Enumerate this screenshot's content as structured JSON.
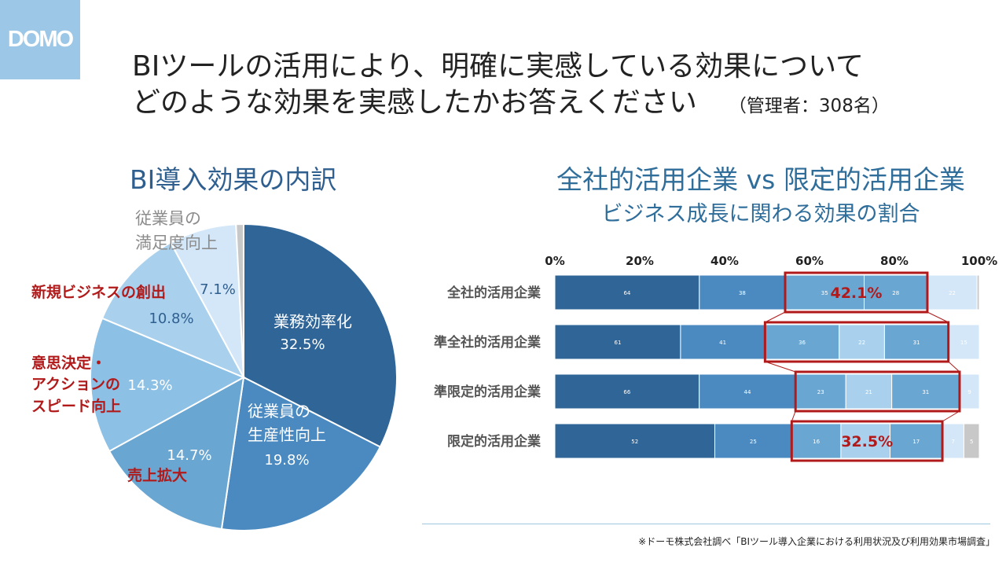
{
  "logo": {
    "text": "DOMO"
  },
  "title": {
    "line1": "BIツールの活用により、明確に実感している効果について",
    "line2": "どのような効果を実感したかお答えください",
    "sub": "（管理者：308名）"
  },
  "colors": {
    "accent": "#2f5f8f",
    "highlight": "#b01a1a",
    "pie": [
      "#2f6597",
      "#4a8ac0",
      "#6aa6d2",
      "#8dc0e5",
      "#a9d1ee",
      "#d3e7f8",
      "#c8c8c8"
    ],
    "bars": [
      "#2f6597",
      "#4a8ac0",
      "#6aa6d2",
      "#a9d1ee",
      "#6aa6d2",
      "#d3e7f8",
      "#c8c8c8"
    ]
  },
  "chart_data": [
    {
      "type": "pie",
      "title": "BI導入効果の内訳",
      "slices": [
        {
          "label": "業務効率化",
          "value": 32.5,
          "label_text": "32.5%"
        },
        {
          "label": "従業員の生産性向上",
          "value": 19.8,
          "label_text": "19.8%"
        },
        {
          "label": "売上拡大",
          "value": 14.7,
          "label_text": "14.7%"
        },
        {
          "label": "意思決定・アクションのスピード向上",
          "value": 14.3,
          "label_text": "14.3%"
        },
        {
          "label": "新規ビジネスの創出",
          "value": 10.8,
          "label_text": "10.8%"
        },
        {
          "label": "従業員の満足度向上",
          "value": 7.1,
          "label_text": "7.1%"
        },
        {
          "label": "",
          "value": 0.8,
          "label_text": ""
        }
      ],
      "labels": {
        "inside_work": [
          "業務効率化",
          "32.5%"
        ],
        "inside_prod": [
          "従業員の",
          "生産性向上",
          "19.8%"
        ],
        "outside_sales": "売上拡大",
        "outside_decision": [
          "意思決定・",
          "アクションの",
          "スピード向上"
        ],
        "outside_newbiz": "新規ビジネスの創出",
        "outside_satisfaction": [
          "従業員の",
          "満足度向上"
        ]
      }
    },
    {
      "type": "bar",
      "stacked": true,
      "orientation": "horizontal",
      "title": "全社的活用企業 vs 限定的活用企業",
      "subtitle": "ビジネス成長に関わる効果の割合",
      "xlim": [
        0,
        100
      ],
      "x_ticks": [
        "0%",
        "20%",
        "40%",
        "60%",
        "80%",
        "100%"
      ],
      "categories": [
        "全社的活用企業",
        "準全社的活用企業",
        "準限定的活用企業",
        "限定的活用企業"
      ],
      "rows": [
        {
          "name": "全社的活用企業",
          "values": [
            64,
            38,
            35,
            28,
            22,
            1
          ],
          "labels": [
            "64",
            "38",
            "35",
            "28",
            "22",
            ""
          ],
          "order": [
            0,
            1,
            2,
            4,
            5,
            6
          ],
          "highlight": [
            2,
            3
          ],
          "highlight_label": "42.1%"
        },
        {
          "name": "準全社的活用企業",
          "values": [
            61,
            41,
            36,
            22,
            31,
            15
          ],
          "labels": [
            "61",
            "41",
            "36",
            "22",
            "31",
            "15"
          ],
          "order": [
            0,
            1,
            2,
            3,
            4,
            5
          ],
          "highlight": [
            2,
            4
          ],
          "highlight_label": ""
        },
        {
          "name": "準限定的活用企業",
          "values": [
            66,
            44,
            23,
            21,
            31,
            9
          ],
          "labels": [
            "66",
            "44",
            "23",
            "21",
            "31",
            "9"
          ],
          "order": [
            0,
            1,
            2,
            3,
            4,
            5
          ],
          "highlight": [
            2,
            4
          ],
          "highlight_label": ""
        },
        {
          "name": "限定的活用企業",
          "values": [
            52,
            25,
            16,
            16,
            17,
            7,
            5
          ],
          "labels": [
            "52",
            "25",
            "16",
            "",
            "17",
            "7",
            "5"
          ],
          "order": [
            0,
            1,
            2,
            3,
            4,
            5,
            6
          ],
          "highlight": [
            2,
            4
          ],
          "highlight_label": "32.5%"
        }
      ]
    }
  ],
  "footnote": "※ドーモ株式会社調べ「BIツール導入企業における利用状況及び利用効果市場調査」"
}
